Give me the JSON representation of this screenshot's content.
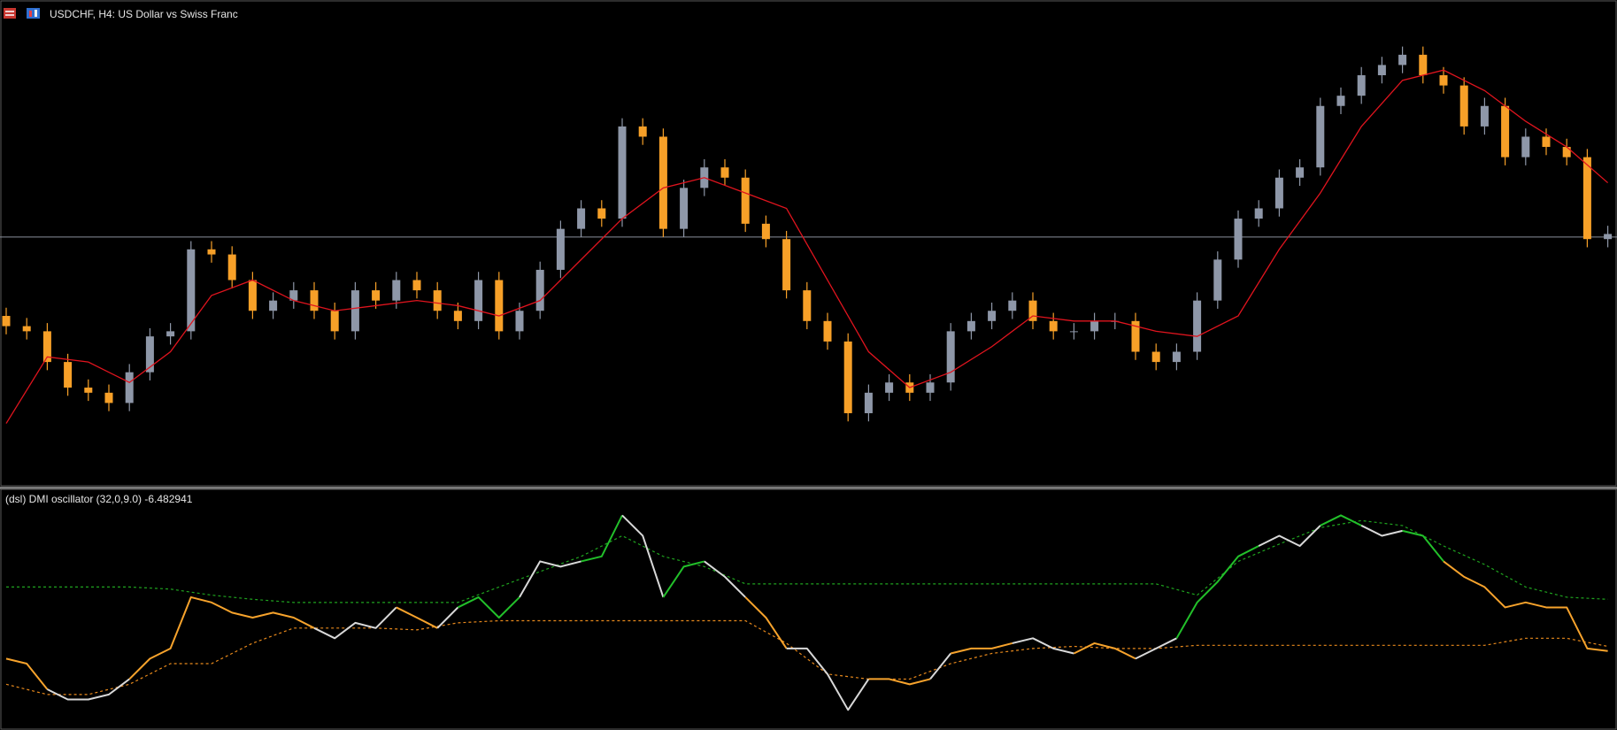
{
  "chart_data": [
    {
      "type": "candlestick",
      "title": "USDCHF, H4:  US Dollar vs Swiss Franc",
      "open": [
        165,
        155,
        150,
        120,
        95,
        90,
        80,
        110,
        145,
        150,
        230,
        225,
        200,
        170,
        180,
        190,
        170,
        150,
        190,
        180,
        200,
        190,
        170,
        160,
        200,
        150,
        170,
        210,
        250,
        270,
        260,
        350,
        340,
        250,
        290,
        310,
        300,
        255,
        240,
        190,
        160,
        140,
        70,
        90,
        100,
        90,
        100,
        150,
        160,
        170,
        180,
        160,
        150,
        150,
        160,
        160,
        130,
        120,
        130,
        180,
        220,
        260,
        270,
        300,
        310,
        370,
        380,
        400,
        410,
        420,
        400,
        390,
        350,
        370,
        320,
        340,
        330,
        320,
        240
      ],
      "high": [
        173,
        163,
        158,
        128,
        103,
        98,
        118,
        153,
        158,
        238,
        238,
        233,
        208,
        188,
        198,
        198,
        178,
        198,
        198,
        208,
        208,
        198,
        178,
        208,
        208,
        178,
        218,
        258,
        278,
        278,
        358,
        358,
        348,
        298,
        318,
        318,
        308,
        263,
        248,
        198,
        168,
        148,
        98,
        108,
        108,
        108,
        158,
        168,
        178,
        188,
        188,
        168,
        158,
        168,
        168,
        168,
        138,
        138,
        188,
        228,
        268,
        278,
        308,
        318,
        378,
        388,
        408,
        418,
        428,
        428,
        408,
        398,
        378,
        378,
        348,
        348,
        338,
        328,
        253
      ],
      "low": [
        147,
        142,
        112,
        87,
        82,
        72,
        72,
        102,
        137,
        142,
        217,
        192,
        162,
        162,
        172,
        162,
        142,
        142,
        172,
        172,
        182,
        162,
        152,
        152,
        142,
        142,
        162,
        202,
        242,
        252,
        252,
        332,
        242,
        242,
        282,
        292,
        247,
        232,
        182,
        152,
        132,
        62,
        62,
        82,
        82,
        82,
        92,
        142,
        152,
        162,
        152,
        142,
        142,
        142,
        152,
        122,
        112,
        112,
        122,
        172,
        212,
        252,
        262,
        292,
        302,
        362,
        372,
        392,
        402,
        392,
        382,
        342,
        342,
        312,
        312,
        322,
        312,
        232,
        232
      ],
      "close": [
        155,
        150,
        120,
        95,
        90,
        80,
        110,
        145,
        150,
        230,
        225,
        200,
        170,
        180,
        190,
        170,
        150,
        190,
        180,
        200,
        190,
        170,
        160,
        200,
        150,
        170,
        210,
        250,
        270,
        260,
        350,
        340,
        250,
        290,
        310,
        300,
        255,
        240,
        190,
        160,
        140,
        70,
        90,
        100,
        90,
        100,
        150,
        160,
        170,
        180,
        160,
        150,
        150,
        160,
        160,
        130,
        120,
        130,
        180,
        220,
        260,
        270,
        300,
        310,
        370,
        380,
        400,
        410,
        420,
        400,
        390,
        350,
        370,
        320,
        340,
        330,
        320,
        240,
        245
      ],
      "up_color": "#8e97a8",
      "down_color": "#f7a028",
      "ma": {
        "color": "#e0141e",
        "x": [
          0,
          2,
          4,
          6,
          8,
          10,
          12,
          14,
          16,
          18,
          20,
          22,
          24,
          26,
          28,
          30,
          32,
          34,
          36,
          38,
          40,
          42,
          44,
          46,
          48,
          50,
          52,
          54,
          56,
          58,
          60,
          62,
          64,
          66,
          68,
          70,
          72,
          74,
          76,
          78
        ],
        "values": [
          60,
          125,
          120,
          100,
          130,
          185,
          200,
          180,
          170,
          175,
          180,
          175,
          165,
          180,
          220,
          260,
          290,
          300,
          285,
          270,
          200,
          130,
          95,
          110,
          135,
          165,
          160,
          160,
          150,
          145,
          165,
          230,
          285,
          350,
          395,
          405,
          385,
          355,
          330,
          295
        ]
      },
      "hline": 242,
      "hline_color": "#8a909c",
      "ylim": [
        0,
        470
      ]
    },
    {
      "type": "line",
      "title": "(dsl) DMI oscillator  (32,0,9.0) -6.482941",
      "series": [
        {
          "values": [
            -9.4,
            -11.3,
            -21.1,
            -25.0,
            -25.0,
            -23.1,
            -17.2,
            -9.4,
            -5.5,
            14.1,
            12.1,
            8.2,
            6.3,
            8.2,
            6.3,
            2.3,
            -1.6,
            4.3,
            2.3,
            10.2,
            6.3,
            2.3,
            10.2,
            14.1,
            6.3,
            14.1,
            27.8,
            25.8,
            27.8,
            29.7,
            45.4,
            37.6,
            14.1,
            25.8,
            27.8,
            21.9,
            14.1,
            6.3,
            -5.5,
            -5.5,
            -15.3,
            -29.0,
            -17.2,
            -17.2,
            -19.2,
            -17.2,
            -7.4,
            -5.5,
            -5.5,
            -3.5,
            -1.6,
            -5.5,
            -7.4,
            -3.5,
            -5.5,
            -9.4,
            -5.5,
            -1.6,
            12.1,
            20.0,
            29.7,
            33.7,
            37.6,
            33.7,
            41.5,
            45.4,
            41.5,
            37.6,
            39.5,
            37.6,
            27.8,
            21.9,
            18.0,
            10.2,
            12.1,
            10.2,
            10.2,
            -5.5,
            -6.482941
          ],
          "color_runs": [
            {
              "start": 0,
              "color": "#f7a32c"
            },
            {
              "start": 2,
              "color": "#d8d8d8"
            },
            {
              "start": 6,
              "color": "#f7a32c"
            },
            {
              "start": 15,
              "color": "#d8d8d8"
            },
            {
              "start": 19,
              "color": "#f7a32c"
            },
            {
              "start": 21,
              "color": "#d8d8d8"
            },
            {
              "start": 22,
              "color": "#22c02a"
            },
            {
              "start": 25,
              "color": "#d8d8d8"
            },
            {
              "start": 28,
              "color": "#22c02a"
            },
            {
              "start": 30,
              "color": "#d8d8d8"
            },
            {
              "start": 32,
              "color": "#22c02a"
            },
            {
              "start": 34,
              "color": "#d8d8d8"
            },
            {
              "start": 36,
              "color": "#f7a32c"
            },
            {
              "start": 38,
              "color": "#d8d8d8"
            },
            {
              "start": 42,
              "color": "#f7a32c"
            },
            {
              "start": 45,
              "color": "#d8d8d8"
            },
            {
              "start": 46,
              "color": "#f7a32c"
            },
            {
              "start": 49,
              "color": "#d8d8d8"
            },
            {
              "start": 52,
              "color": "#f7a32c"
            },
            {
              "start": 55,
              "color": "#d8d8d8"
            },
            {
              "start": 57,
              "color": "#22c02a"
            },
            {
              "start": 61,
              "color": "#d8d8d8"
            },
            {
              "start": 64,
              "color": "#22c02a"
            },
            {
              "start": 66,
              "color": "#d8d8d8"
            },
            {
              "start": 68,
              "color": "#22c02a"
            },
            {
              "start": 70,
              "color": "#f7a32c"
            }
          ]
        },
        {
          "x": [
            0,
            2,
            4,
            6,
            8,
            10,
            12,
            14,
            16,
            18,
            20,
            22,
            24,
            26,
            28,
            30,
            32,
            34,
            36,
            38,
            40,
            42,
            44,
            46,
            48,
            50,
            52,
            54,
            56,
            58,
            60,
            62,
            64,
            66,
            68,
            70,
            72,
            74,
            76,
            78
          ],
          "values": [
            18.0,
            18.0,
            18.0,
            18.0,
            17.2,
            14.9,
            13.3,
            12.1,
            12.1,
            12.1,
            12.1,
            12.1,
            18.0,
            23.9,
            29.7,
            37.6,
            29.7,
            25.8,
            19.2,
            19.2,
            19.2,
            19.2,
            19.2,
            19.2,
            19.2,
            19.2,
            19.2,
            19.2,
            19.2,
            14.9,
            27.8,
            34.4,
            40.7,
            43.4,
            41.5,
            33.7,
            26.6,
            18.0,
            14.1,
            13.3
          ],
          "color": "#1fa31f",
          "dashed": true
        },
        {
          "x": [
            0,
            2,
            4,
            6,
            8,
            10,
            12,
            14,
            16,
            18,
            20,
            22,
            24,
            26,
            28,
            30,
            32,
            34,
            36,
            38,
            40,
            42,
            44,
            46,
            48,
            50,
            52,
            54,
            56,
            58,
            60,
            62,
            64,
            66,
            68,
            70,
            72,
            74,
            76,
            78
          ],
          "values": [
            -19.2,
            -23.1,
            -23.1,
            -19.2,
            -11.3,
            -11.3,
            -3.5,
            2.3,
            2.3,
            2.3,
            1.6,
            4.3,
            5.1,
            5.1,
            5.1,
            5.1,
            5.1,
            5.1,
            5.1,
            -3.5,
            -15.3,
            -17.2,
            -17.2,
            -11.3,
            -7.4,
            -5.5,
            -4.7,
            -5.5,
            -5.5,
            -4.3,
            -4.3,
            -4.3,
            -4.3,
            -4.3,
            -4.3,
            -4.3,
            -4.3,
            -1.6,
            -1.6,
            -4.7
          ],
          "color": "#e8891c",
          "dashed": true
        }
      ],
      "ylim": [
        -36,
        54
      ]
    }
  ]
}
